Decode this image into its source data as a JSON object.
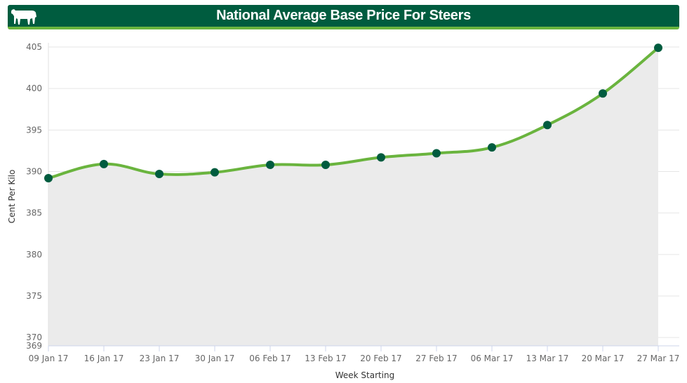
{
  "header": {
    "title": "National Average Base Price For Steers",
    "icon": "cow-icon"
  },
  "colors": {
    "banner_bg": "#005c3f",
    "banner_accent": "#6ab43e",
    "line": "#6ab43e",
    "marker": "#005c3f",
    "area_fill": "#ebebeb",
    "grid": "#e6e6e6"
  },
  "chart_data": {
    "type": "area",
    "title": "National Average Base Price For Steers",
    "xlabel": "Week Starting",
    "ylabel": "Cent Per Kilo",
    "categories": [
      "09 Jan 17",
      "16 Jan 17",
      "23 Jan 17",
      "30 Jan 17",
      "06 Feb 17",
      "13 Feb 17",
      "20 Feb 17",
      "27 Feb 17",
      "06 Mar 17",
      "13 Mar 17",
      "20 Mar 17",
      "27 Mar 17"
    ],
    "series": [
      {
        "name": "National Average Base Price For Steers",
        "values": [
          389.2,
          390.9,
          389.7,
          389.9,
          390.8,
          390.8,
          391.7,
          392.2,
          392.9,
          395.6,
          399.4,
          404.9
        ]
      }
    ],
    "yticks": [
      369,
      370,
      375,
      380,
      385,
      390,
      395,
      400,
      405
    ],
    "ylim": [
      369,
      405
    ],
    "grid": true,
    "legend": "none",
    "smooth": true,
    "markers": true
  }
}
